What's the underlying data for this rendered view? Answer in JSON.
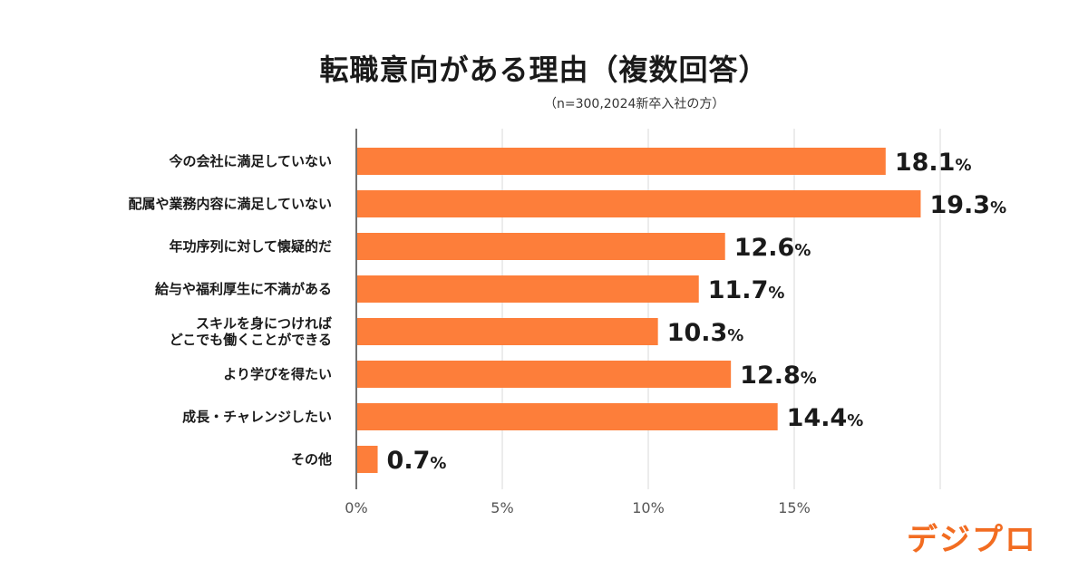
{
  "chart_data": {
    "type": "bar",
    "orientation": "horizontal",
    "title": "転職意向がある理由（複数回答）",
    "subtitle": "（n=300,2024新卒入社の方）",
    "categories": [
      "今の会社に満足していない",
      "配属や業務内容に満足していない",
      "年功序列に対して懐疑的だ",
      "給与や福利厚生に不満がある",
      "スキルを身につければ\nどこでも働くことができる",
      "より学びを得たい",
      "成長・チャレンジしたい",
      "その他"
    ],
    "values": [
      18.1,
      19.3,
      12.6,
      11.7,
      10.3,
      12.8,
      14.4,
      0.7
    ],
    "value_labels": [
      "18.1",
      "19.3",
      "12.6",
      "11.7",
      "10.3",
      "12.8",
      "14.4",
      "0.7"
    ],
    "value_suffix": "%",
    "xlim": [
      0,
      20
    ],
    "xticks": [
      0,
      5,
      10,
      15
    ],
    "xtick_labels": [
      "0%",
      "5%",
      "10%",
      "15%"
    ],
    "grid": true,
    "bar_color": "#fd7e3a",
    "grid_color": "#d9d9d9"
  },
  "brand": {
    "logo_text": "デジプロ",
    "color": "#f26c21"
  }
}
